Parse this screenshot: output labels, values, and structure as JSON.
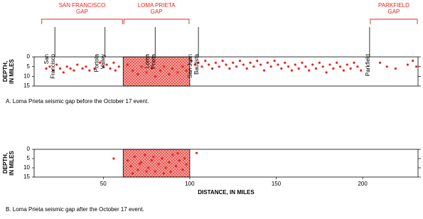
{
  "chart_data": [
    {
      "type": "scatter",
      "color": "#e8231c",
      "gaps": [
        {
          "label": [
            "SAN FRANCISCO",
            "GAP"
          ],
          "x": [
            14,
            61.5
          ]
        },
        {
          "label": [
            "LOMA PRIETA",
            "GAP"
          ],
          "x": [
            61.5,
            100
          ]
        },
        {
          "label": [
            "PARKFIELD",
            "GAP"
          ],
          "x": [
            204,
            232
          ]
        }
      ],
      "places": [
        {
          "label": [
            "San",
            "Francisco"
          ],
          "x": 22
        },
        {
          "label": [
            "Portola",
            "Valley"
          ],
          "x": 51
        },
        {
          "label": [
            "Loma",
            "Prieta"
          ],
          "x": 80
        },
        {
          "label": [
            "San Juan",
            "Bautista"
          ],
          "x": 105
        },
        {
          "label": [
            "Parkfield"
          ],
          "x": 204
        }
      ],
      "shaded_region": [
        61.5,
        100
      ],
      "ylabel": [
        "DEPTH,",
        "IN MILES"
      ],
      "caption": "A. Loma Prieta seismic gap before the October 17 event.",
      "xlim": [
        10,
        232
      ],
      "ylim": [
        0,
        15
      ],
      "invert_y": true,
      "yticks": [
        0,
        5,
        10,
        15
      ],
      "x": [
        17,
        19,
        21,
        23,
        25,
        27,
        29,
        31,
        33,
        35,
        38,
        40,
        42,
        45,
        48,
        50,
        52,
        54,
        56,
        57,
        59,
        64,
        67,
        70,
        72,
        75,
        78,
        80,
        83,
        85,
        88,
        90,
        93,
        96,
        98,
        101,
        103,
        105,
        107,
        109,
        111,
        113,
        115,
        117,
        119,
        121,
        123,
        125,
        127,
        129,
        131,
        133,
        135,
        137,
        139,
        141,
        143,
        145,
        147,
        149,
        151,
        153,
        155,
        157,
        159,
        161,
        163,
        165,
        167,
        169,
        171,
        173,
        175,
        177,
        179,
        181,
        183,
        185,
        187,
        189,
        191,
        193,
        195,
        197,
        199,
        210,
        214,
        219,
        226,
        229,
        231
      ],
      "y": [
        6,
        5,
        7,
        4,
        6,
        8,
        5,
        6,
        7,
        4,
        6,
        5,
        7,
        6,
        3,
        5,
        4,
        6,
        3,
        7,
        5,
        4,
        7,
        9,
        5,
        8,
        6,
        10,
        7,
        5,
        9,
        6,
        8,
        5,
        7,
        2,
        4,
        3,
        5,
        2,
        4,
        6,
        3,
        5,
        2,
        4,
        6,
        3,
        5,
        2,
        4,
        6,
        3,
        5,
        2,
        4,
        7,
        3,
        5,
        2,
        4,
        6,
        3,
        5,
        7,
        4,
        6,
        3,
        5,
        7,
        4,
        6,
        3,
        5,
        8,
        4,
        6,
        3,
        5,
        7,
        4,
        6,
        3,
        5,
        7,
        3,
        5,
        6,
        4,
        2,
        5
      ]
    },
    {
      "type": "scatter",
      "color": "#e8231c",
      "shaded_region": [
        61.5,
        100
      ],
      "ylabel": [
        "DEPTH,",
        "IN MILES"
      ],
      "xlabel": "DISTANCE, IN MILES",
      "caption": "B. Loma Prieta seismic gap after the October 17 event.",
      "xlim": [
        10,
        232
      ],
      "xticks": [
        50,
        100,
        150,
        200
      ],
      "ylim": [
        0,
        15
      ],
      "invert_y": true,
      "yticks": [
        0,
        5,
        10,
        15
      ],
      "x": [
        56,
        64,
        66,
        68,
        70,
        72,
        74,
        76,
        78,
        80,
        82,
        84,
        86,
        88,
        90,
        92,
        94,
        96,
        98,
        67,
        75,
        85,
        93,
        79,
        71,
        89,
        97,
        104
      ],
      "y": [
        5,
        6,
        9,
        4,
        11,
        7,
        3,
        10,
        6,
        12,
        8,
        5,
        10,
        7,
        3,
        9,
        6,
        11,
        8,
        13,
        12,
        13,
        2,
        4,
        8,
        12,
        5,
        2
      ]
    }
  ]
}
